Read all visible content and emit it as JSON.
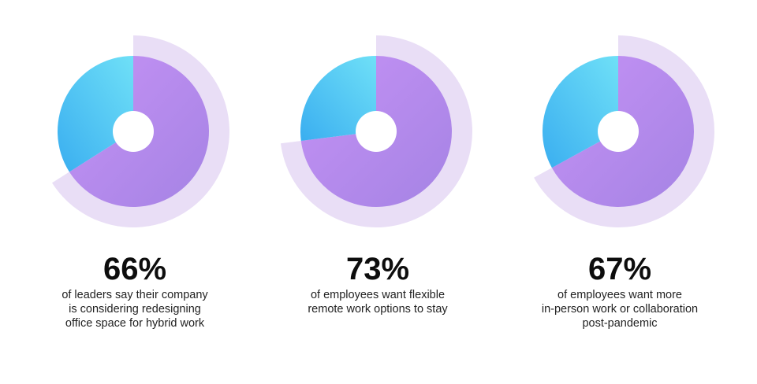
{
  "colors": {
    "purple_a": "#c592f5",
    "purple_b": "#a583e4",
    "blue_a": "#6fe0f7",
    "blue_b": "#3aaef0",
    "outer_ring": "#e9def6",
    "hole": "#ffffff"
  },
  "chart_data": [
    {
      "type": "pie",
      "label": "66%",
      "caption": "of leaders say their company is considering redesigning office space for hybrid work",
      "caption_lines": [
        "of leaders say their company",
        "is considering redesigning",
        "office space for hybrid work"
      ],
      "values": [
        66,
        34
      ]
    },
    {
      "type": "pie",
      "label": "73%",
      "caption": "of employees want flexible remote work options to stay",
      "caption_lines": [
        "of employees want flexible",
        "remote work options to stay"
      ],
      "values": [
        73,
        27
      ]
    },
    {
      "type": "pie",
      "label": "67%",
      "caption": "of employees want more in-person work or collaboration post-pandemic",
      "caption_lines": [
        "of employees want more",
        "in-person work or collaboration",
        "post-pandemic"
      ],
      "values": [
        67,
        33
      ]
    }
  ]
}
